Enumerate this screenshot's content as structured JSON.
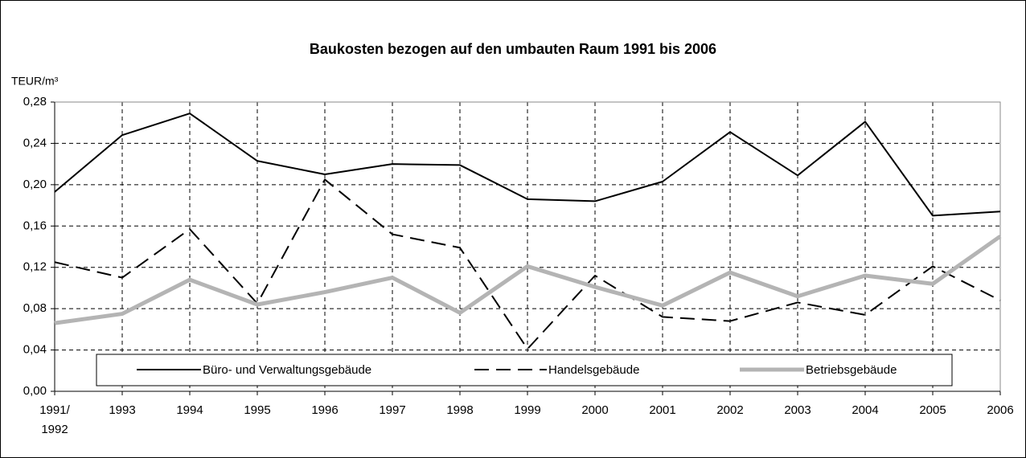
{
  "chart_data": {
    "type": "line",
    "title": "Baukosten bezogen auf den umbauten Raum 1991 bis 2006",
    "y_label": "TEUR/m³",
    "categories": [
      "1991/ 1992",
      "1993",
      "1994",
      "1995",
      "1996",
      "1997",
      "1998",
      "1999",
      "2000",
      "2001",
      "2002",
      "2003",
      "2004",
      "2005",
      "2006"
    ],
    "series": [
      {
        "name": "Büro- und Verwaltungsgebäude",
        "color": "#000000",
        "style": "solid",
        "values": [
          0.193,
          0.248,
          0.269,
          0.223,
          0.21,
          0.22,
          0.219,
          0.186,
          0.184,
          0.203,
          0.251,
          0.209,
          0.261,
          0.17,
          0.174
        ]
      },
      {
        "name": "Handelsgebäude",
        "color": "#000000",
        "style": "dashed",
        "values": [
          0.125,
          0.11,
          0.157,
          0.085,
          0.205,
          0.152,
          0.139,
          0.041,
          0.112,
          0.072,
          0.068,
          0.086,
          0.074,
          0.121,
          0.088
        ]
      },
      {
        "name": "Betriebsgebäude",
        "color": "#b4b4b4",
        "style": "thick",
        "values": [
          0.066,
          0.075,
          0.108,
          0.084,
          0.096,
          0.11,
          0.076,
          0.121,
          0.101,
          0.083,
          0.115,
          0.092,
          0.112,
          0.104,
          0.15
        ]
      }
    ],
    "ylim": [
      0,
      0.28
    ],
    "yticks": [
      {
        "value": 0,
        "label": "0,00"
      },
      {
        "value": 0.04,
        "label": "0,04"
      },
      {
        "value": 0.08,
        "label": "0,08"
      },
      {
        "value": 0.12,
        "label": "0,12"
      },
      {
        "value": 0.16,
        "label": "0,16"
      },
      {
        "value": 0.2,
        "label": "0,20"
      },
      {
        "value": 0.24,
        "label": "0,24"
      },
      {
        "value": 0.28,
        "label": "0,28"
      }
    ],
    "grid": true,
    "legend": "bottom"
  }
}
